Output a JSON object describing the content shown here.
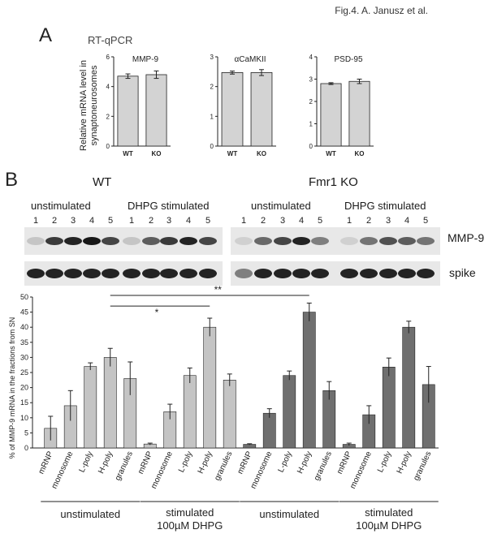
{
  "figure": {
    "caption": "Fig.4. A. Janusz et al."
  },
  "panel_a": {
    "letter": "A",
    "title": "RT-qPCR",
    "ylabel_line1": "Relative mRNA level in",
    "ylabel_line2": "synaptoneurosomes"
  },
  "panel_b": {
    "letter": "B",
    "wt_label": "WT",
    "ko_label": "Fmr1 KO",
    "unstim_label": "unstimulated",
    "dhpg_label": "DHPG stimulated",
    "lane_numbers": [
      "1",
      "2",
      "3",
      "4",
      "5"
    ],
    "mmp9_label": "MMP-9",
    "spike_label": "spike",
    "sig_single": "*",
    "sig_double": "**",
    "bar_ylabel": "% of MMP-9 mRNA in the fractions from SN",
    "group_labels": [
      "unstimulated",
      "stimulated",
      "unstimulated",
      "stimulated"
    ],
    "group_sublabels": [
      "",
      "100µM DHPG",
      "",
      "100µM DHPG"
    ]
  },
  "colors": {
    "bar_a": "#d3d3d3",
    "bar_light": "#c4c4c4",
    "bar_dark": "#6f6f6f",
    "axis": "#222222"
  },
  "chart_data": [
    {
      "type": "bar",
      "title": "MMP-9",
      "categories": [
        "WT",
        "KO"
      ],
      "values": [
        4.7,
        4.8
      ],
      "errors": [
        0.15,
        0.25
      ],
      "ylim": [
        0,
        6
      ],
      "yticks": [
        "0",
        "2",
        "4",
        "6"
      ]
    },
    {
      "type": "bar",
      "title": "αCaMKII",
      "categories": [
        "WT",
        "KO"
      ],
      "values": [
        2.47,
        2.47
      ],
      "errors": [
        0.05,
        0.1
      ],
      "ylim": [
        0,
        3
      ],
      "yticks": [
        "0",
        "1",
        "2",
        "3"
      ]
    },
    {
      "type": "bar",
      "title": "PSD-95",
      "categories": [
        "WT",
        "KO"
      ],
      "values": [
        2.8,
        2.9
      ],
      "errors": [
        0.04,
        0.1
      ],
      "ylim": [
        0,
        4
      ],
      "yticks": [
        "0",
        "1",
        "2",
        "3",
        "4"
      ]
    },
    {
      "type": "bar",
      "categories": [
        "mRNP",
        "monosome",
        "L-poly",
        "H-poly",
        "granules",
        "mRNP",
        "monosome",
        "L-poly",
        "H-poly",
        "granules",
        "mRNP",
        "monosome",
        "L-poly",
        "H-poly",
        "granules",
        "mRNP",
        "monosome",
        "L-poly",
        "H-poly",
        "granules"
      ],
      "values": [
        6.5,
        14,
        27,
        30,
        23,
        1.3,
        12,
        24,
        40,
        22.5,
        1.2,
        11.5,
        24,
        45,
        19,
        1.2,
        11,
        26.8,
        40,
        21
      ],
      "errors": [
        4,
        5,
        1.2,
        3,
        5.5,
        0.3,
        2.5,
        2.5,
        3,
        2,
        0.2,
        1.5,
        1.5,
        3,
        3,
        0.4,
        3,
        3,
        2,
        6
      ],
      "shades": [
        "light",
        "light",
        "light",
        "light",
        "light",
        "light",
        "light",
        "light",
        "light",
        "light",
        "dark",
        "dark",
        "dark",
        "dark",
        "dark",
        "dark",
        "dark",
        "dark",
        "dark",
        "dark"
      ],
      "ylim": [
        0,
        50
      ],
      "yticks": [
        "0",
        "5",
        "10",
        "15",
        "20",
        "25",
        "30",
        "35",
        "40",
        "45",
        "50"
      ]
    }
  ]
}
